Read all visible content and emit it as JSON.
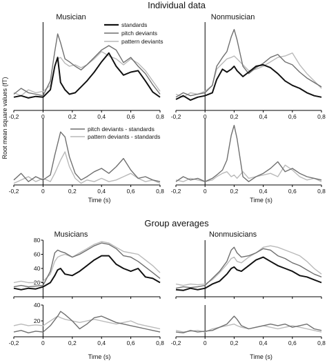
{
  "section_titles": {
    "individual": "Individual data",
    "group": "Group averages"
  },
  "ylabel": "Root mean square values (fT)",
  "xlabel": "Time (s)",
  "colors": {
    "standards": "#111111",
    "pitch_deviants": "#6f6f6f",
    "pattern_deviants": "#b9b9b9",
    "axis": "#000000"
  },
  "legend_top": [
    "standards",
    "pitch deviants",
    "pattern deviants"
  ],
  "legend_diff": [
    "pitch deviants - standards",
    "pattern deviants - standards"
  ],
  "chart_data": [
    {
      "type": "line",
      "title": "Musician",
      "xlim": [
        -0.2,
        0.8
      ],
      "ylim": [
        0,
        120
      ],
      "xticks": [
        "-0,2",
        "0",
        "0,2",
        "0,4",
        "0,6",
        "0,8"
      ],
      "x": [
        -0.2,
        -0.15,
        -0.1,
        -0.05,
        0,
        0.05,
        0.08,
        0.1,
        0.12,
        0.15,
        0.18,
        0.22,
        0.26,
        0.3,
        0.35,
        0.4,
        0.45,
        0.5,
        0.55,
        0.6,
        0.65,
        0.7,
        0.75,
        0.8
      ],
      "series": [
        {
          "name": "standards",
          "values": [
            18,
            20,
            17,
            19,
            18,
            28,
            60,
            72,
            38,
            28,
            22,
            24,
            32,
            40,
            52,
            66,
            78,
            60,
            48,
            52,
            54,
            40,
            25,
            18
          ]
        },
        {
          "name": "pitch deviants",
          "values": [
            22,
            30,
            24,
            22,
            20,
            40,
            80,
            104,
            92,
            70,
            66,
            60,
            55,
            62,
            72,
            82,
            88,
            82,
            65,
            72,
            60,
            50,
            35,
            22
          ]
        },
        {
          "name": "pattern deviants",
          "values": [
            24,
            20,
            28,
            24,
            26,
            34,
            60,
            70,
            72,
            64,
            60,
            62,
            58,
            62,
            70,
            80,
            74,
            70,
            62,
            70,
            64,
            54,
            40,
            26
          ]
        }
      ]
    },
    {
      "type": "line",
      "title": "Nonmusician",
      "xlim": [
        -0.2,
        0.8
      ],
      "ylim": [
        0,
        120
      ],
      "xticks": [
        "-0,2",
        "0",
        "0,2",
        "0,4",
        "0,6",
        "0,8"
      ],
      "x": [
        -0.2,
        -0.15,
        -0.1,
        -0.05,
        0,
        0.05,
        0.08,
        0.12,
        0.15,
        0.18,
        0.2,
        0.22,
        0.26,
        0.3,
        0.35,
        0.4,
        0.45,
        0.5,
        0.55,
        0.6,
        0.65,
        0.7,
        0.75,
        0.8
      ],
      "series": [
        {
          "name": "standards",
          "values": [
            15,
            20,
            14,
            18,
            20,
            24,
            42,
            56,
            52,
            56,
            60,
            54,
            46,
            52,
            60,
            62,
            58,
            50,
            40,
            34,
            30,
            24,
            20,
            18
          ]
        },
        {
          "name": "pitch deviants",
          "values": [
            18,
            24,
            20,
            22,
            24,
            34,
            60,
            72,
            80,
            100,
            110,
            96,
            60,
            50,
            58,
            64,
            72,
            76,
            66,
            62,
            52,
            44,
            38,
            32
          ]
        },
        {
          "name": "pattern deviants",
          "values": [
            22,
            18,
            24,
            22,
            26,
            34,
            56,
            64,
            70,
            72,
            74,
            70,
            62,
            54,
            56,
            60,
            66,
            72,
            74,
            78,
            62,
            50,
            40,
            30
          ]
        }
      ]
    },
    {
      "type": "line",
      "title": "",
      "xlim": [
        -0.2,
        0.8
      ],
      "ylim": [
        0,
        80
      ],
      "xticks": [
        "-0,2",
        "0",
        "0,2",
        "0,4",
        "0,6",
        "0,8"
      ],
      "x": [
        -0.2,
        -0.15,
        -0.1,
        -0.05,
        0,
        0.05,
        0.08,
        0.1,
        0.12,
        0.15,
        0.18,
        0.22,
        0.26,
        0.3,
        0.35,
        0.4,
        0.45,
        0.5,
        0.55,
        0.6,
        0.65,
        0.7,
        0.75,
        0.8
      ],
      "series": [
        {
          "name": "pitch deviants - standards",
          "values": [
            6,
            14,
            4,
            10,
            6,
            12,
            36,
            50,
            64,
            58,
            34,
            14,
            6,
            10,
            16,
            20,
            14,
            22,
            32,
            18,
            8,
            10,
            6,
            4
          ]
        },
        {
          "name": "pattern deviants - standards",
          "values": [
            2,
            6,
            10,
            4,
            8,
            4,
            14,
            22,
            30,
            40,
            22,
            8,
            2,
            6,
            4,
            8,
            4,
            6,
            10,
            14,
            8,
            4,
            6,
            2
          ]
        }
      ]
    },
    {
      "type": "line",
      "title": "",
      "xlim": [
        -0.2,
        0.8
      ],
      "ylim": [
        0,
        80
      ],
      "xticks": [
        "-0,2",
        "0",
        "0,2",
        "0,4",
        "0,6",
        "0,8"
      ],
      "x": [
        -0.2,
        -0.15,
        -0.1,
        -0.05,
        0,
        0.05,
        0.08,
        0.12,
        0.15,
        0.18,
        0.2,
        0.22,
        0.26,
        0.3,
        0.35,
        0.4,
        0.45,
        0.5,
        0.55,
        0.6,
        0.65,
        0.7,
        0.75,
        0.8
      ],
      "series": [
        {
          "name": "pitch deviants - standards",
          "values": [
            4,
            10,
            6,
            8,
            4,
            8,
            12,
            18,
            30,
            60,
            72,
            56,
            10,
            4,
            10,
            14,
            20,
            28,
            16,
            20,
            14,
            10,
            8,
            6
          ]
        },
        {
          "name": "pattern deviants - standards",
          "values": [
            6,
            4,
            8,
            6,
            4,
            6,
            10,
            14,
            16,
            10,
            12,
            8,
            16,
            8,
            10,
            12,
            14,
            10,
            24,
            18,
            10,
            6,
            8,
            4
          ]
        }
      ]
    },
    {
      "type": "line",
      "title": "Musicians",
      "xlim": [
        -0.2,
        0.8
      ],
      "ylim": [
        0,
        80
      ],
      "yticks": [
        "20",
        "40",
        "60",
        "80"
      ],
      "xticks": [],
      "x": [
        -0.2,
        -0.15,
        -0.1,
        -0.05,
        0,
        0.05,
        0.08,
        0.1,
        0.12,
        0.15,
        0.2,
        0.25,
        0.3,
        0.35,
        0.4,
        0.45,
        0.5,
        0.55,
        0.6,
        0.65,
        0.7,
        0.75,
        0.8
      ],
      "series": [
        {
          "name": "standards",
          "values": [
            12,
            10,
            12,
            11,
            14,
            20,
            30,
            38,
            40,
            32,
            30,
            36,
            44,
            52,
            58,
            58,
            46,
            40,
            36,
            40,
            28,
            26,
            20
          ]
        },
        {
          "name": "pitch deviants",
          "values": [
            14,
            16,
            14,
            15,
            16,
            36,
            62,
            66,
            64,
            62,
            56,
            60,
            66,
            72,
            76,
            74,
            68,
            58,
            56,
            50,
            42,
            34,
            26
          ]
        },
        {
          "name": "pattern deviants",
          "values": [
            20,
            22,
            20,
            20,
            22,
            32,
            50,
            56,
            58,
            60,
            56,
            62,
            68,
            74,
            78,
            76,
            70,
            64,
            62,
            60,
            52,
            44,
            34
          ]
        }
      ]
    },
    {
      "type": "line",
      "title": "Nonmusicians",
      "xlim": [
        -0.2,
        0.8
      ],
      "ylim": [
        0,
        80
      ],
      "xticks": [],
      "x": [
        -0.2,
        -0.15,
        -0.1,
        -0.05,
        0,
        0.05,
        0.1,
        0.15,
        0.18,
        0.2,
        0.22,
        0.25,
        0.3,
        0.35,
        0.4,
        0.45,
        0.5,
        0.55,
        0.6,
        0.65,
        0.7,
        0.75,
        0.8
      ],
      "series": [
        {
          "name": "standards",
          "values": [
            10,
            9,
            12,
            10,
            12,
            18,
            22,
            32,
            40,
            42,
            38,
            36,
            44,
            52,
            56,
            50,
            44,
            40,
            36,
            30,
            28,
            24,
            20
          ]
        },
        {
          "name": "pitch deviants",
          "values": [
            12,
            14,
            13,
            14,
            16,
            26,
            36,
            50,
            66,
            70,
            62,
            56,
            58,
            62,
            68,
            66,
            58,
            54,
            48,
            44,
            38,
            32,
            28
          ]
        },
        {
          "name": "pattern deviants",
          "values": [
            18,
            16,
            18,
            17,
            18,
            24,
            34,
            46,
            54,
            56,
            50,
            48,
            56,
            62,
            70,
            72,
            70,
            66,
            62,
            58,
            50,
            40,
            32
          ]
        }
      ]
    },
    {
      "type": "line",
      "title": "",
      "xlim": [
        -0.2,
        0.8
      ],
      "ylim": [
        0,
        40
      ],
      "yticks": [
        "20",
        "40"
      ],
      "xticks": [
        "-0,2",
        "0",
        "0,2",
        "0,4",
        "0,6",
        "0,8"
      ],
      "x": [
        -0.2,
        -0.15,
        -0.1,
        -0.05,
        0,
        0.05,
        0.1,
        0.12,
        0.15,
        0.2,
        0.25,
        0.3,
        0.35,
        0.4,
        0.45,
        0.5,
        0.55,
        0.6,
        0.65,
        0.7,
        0.75,
        0.8
      ],
      "series": [
        {
          "name": "pitch deviants - standards",
          "values": [
            6,
            8,
            5,
            7,
            6,
            14,
            26,
            32,
            28,
            20,
            10,
            16,
            24,
            26,
            22,
            18,
            16,
            14,
            12,
            10,
            8,
            6
          ]
        },
        {
          "name": "pattern deviants - standards",
          "values": [
            14,
            16,
            14,
            15,
            14,
            20,
            26,
            24,
            22,
            20,
            18,
            20,
            22,
            20,
            18,
            16,
            18,
            20,
            16,
            14,
            12,
            10
          ]
        }
      ]
    },
    {
      "type": "line",
      "title": "",
      "xlim": [
        -0.2,
        0.8
      ],
      "ylim": [
        0,
        40
      ],
      "xticks": [
        "-0,2",
        "0",
        "0,2",
        "0,4",
        "0,6",
        "0,8"
      ],
      "x": [
        -0.2,
        -0.15,
        -0.1,
        -0.05,
        0,
        0.05,
        0.1,
        0.15,
        0.2,
        0.22,
        0.25,
        0.3,
        0.35,
        0.4,
        0.45,
        0.5,
        0.55,
        0.6,
        0.65,
        0.7,
        0.75,
        0.8
      ],
      "series": [
        {
          "name": "pitch deviants - standards",
          "values": [
            6,
            5,
            8,
            6,
            7,
            8,
            12,
            16,
            26,
            22,
            14,
            10,
            12,
            14,
            16,
            14,
            16,
            12,
            14,
            16,
            10,
            8
          ]
        },
        {
          "name": "pattern deviants - standards",
          "values": [
            8,
            6,
            7,
            8,
            6,
            10,
            12,
            14,
            16,
            14,
            12,
            10,
            12,
            14,
            12,
            10,
            12,
            14,
            12,
            10,
            8,
            6
          ]
        }
      ]
    }
  ]
}
